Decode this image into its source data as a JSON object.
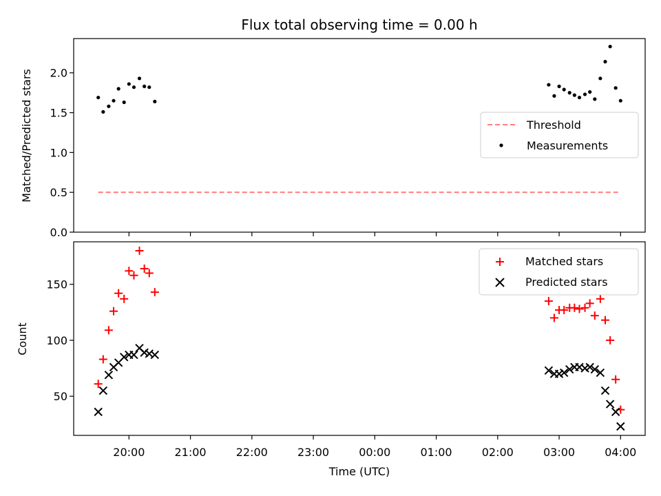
{
  "chart_data": [
    {
      "type": "scatter",
      "title": "Flux total observing time = 0.00 h",
      "ylabel": "Matched/Predicted stars",
      "ylim": [
        0,
        2.43
      ],
      "yticks": [
        0.0,
        0.5,
        1.0,
        1.5,
        2.0
      ],
      "ytick_labels": [
        "0.0",
        "0.5",
        "1.0",
        "1.5",
        "2.0"
      ],
      "xlim": [
        19.1,
        28.4
      ],
      "legend": {
        "placement": "center-right",
        "entries": [
          "Threshold",
          "Measurements"
        ]
      },
      "series": [
        {
          "name": "Threshold",
          "style": "dashed-line",
          "color": "#ff7f7f",
          "x": [
            19.5,
            27.98
          ],
          "y": [
            0.5,
            0.5
          ]
        },
        {
          "name": "Measurements",
          "style": "dot",
          "color": "#000000",
          "x": [
            19.5,
            19.58,
            19.67,
            19.75,
            19.83,
            19.92,
            20.0,
            20.08,
            20.17,
            20.25,
            20.33,
            20.42,
            26.83,
            26.92,
            27.0,
            27.08,
            27.17,
            27.25,
            27.33,
            27.42,
            27.5,
            27.58,
            27.67,
            27.75,
            27.83,
            27.92,
            28.0
          ],
          "y": [
            1.69,
            1.51,
            1.58,
            1.65,
            1.8,
            1.63,
            1.86,
            1.82,
            1.93,
            1.83,
            1.82,
            1.64,
            1.85,
            1.71,
            1.83,
            1.79,
            1.75,
            1.72,
            1.69,
            1.73,
            1.76,
            1.67,
            1.93,
            2.14,
            2.33,
            1.81,
            1.65
          ]
        }
      ]
    },
    {
      "type": "scatter",
      "xlabel": "Time (UTC)",
      "ylabel": "Count",
      "ylim": [
        15,
        188
      ],
      "yticks": [
        50,
        100,
        150
      ],
      "ytick_labels": [
        "50",
        "100",
        "150"
      ],
      "xlim": [
        19.1,
        28.4
      ],
      "xticks": [
        20,
        21,
        22,
        23,
        24,
        25,
        26,
        27,
        28
      ],
      "xtick_labels": [
        "20:00",
        "21:00",
        "22:00",
        "23:00",
        "00:00",
        "01:00",
        "02:00",
        "03:00",
        "04:00"
      ],
      "legend": {
        "placement": "top-right",
        "entries": [
          "Matched stars",
          "Predicted stars"
        ]
      },
      "series": [
        {
          "name": "Matched stars",
          "marker": "plus",
          "color": "#ff0000",
          "x": [
            19.5,
            19.58,
            19.67,
            19.75,
            19.83,
            19.92,
            20.0,
            20.08,
            20.17,
            20.25,
            20.33,
            20.42,
            26.83,
            26.92,
            27.0,
            27.08,
            27.17,
            27.25,
            27.33,
            27.42,
            27.5,
            27.58,
            27.67,
            27.75,
            27.83,
            27.92,
            28.0
          ],
          "y": [
            61,
            83,
            109,
            126,
            142,
            137,
            162,
            158,
            180,
            164,
            160,
            143,
            135,
            120,
            127,
            127,
            129,
            129,
            128,
            129,
            133,
            122,
            137,
            118,
            100,
            65,
            38
          ]
        },
        {
          "name": "Predicted stars",
          "marker": "x",
          "color": "#000000",
          "x": [
            19.5,
            19.58,
            19.67,
            19.75,
            19.83,
            19.92,
            20.0,
            20.08,
            20.17,
            20.25,
            20.33,
            20.42,
            26.83,
            26.92,
            27.0,
            27.08,
            27.17,
            27.25,
            27.33,
            27.42,
            27.5,
            27.58,
            27.67,
            27.75,
            27.83,
            27.92,
            28.0
          ],
          "y": [
            36,
            55,
            69,
            76,
            80,
            85,
            87,
            87,
            93,
            89,
            88,
            87,
            73,
            70,
            70,
            71,
            74,
            76,
            76,
            75,
            76,
            74,
            71,
            55,
            43,
            36,
            23
          ]
        }
      ]
    }
  ]
}
